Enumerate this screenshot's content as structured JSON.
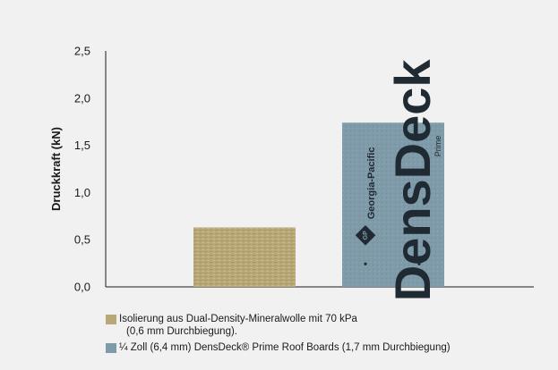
{
  "colors": {
    "background": "#f1f1f1",
    "axis": "#1a1a1a",
    "series_mineral_wool": "#b8a878",
    "series_densdeck": "#7f9aa8"
  },
  "chart_data": {
    "type": "bar",
    "ylabel": "Druckkraft (kN)",
    "xlabel": "",
    "ylim": [
      0,
      2.5
    ],
    "yticks": [
      "0,0",
      "0,5",
      "1,0",
      "1,5",
      "2,0",
      "2,5"
    ],
    "grid": false,
    "legend_position": "bottom-left",
    "series": [
      {
        "name_line1": "Isolierung aus Dual-Density-Mineralwolle mit 70 kPa",
        "name_line2": "(0,6 mm Durchbiegung).",
        "value": 0.63,
        "color": "#b8a878"
      },
      {
        "name_line1": "¼ Zoll (6,4 mm) DensDeck® Prime Roof Boards (1,7 mm Durchbiegung)",
        "name_line2": "",
        "value": 1.74,
        "color": "#7f9aa8"
      }
    ],
    "product_print": {
      "brand": "DensDeck",
      "maker": "Georgia-Pacific",
      "logo": "GP",
      "variant": "Prime"
    }
  }
}
